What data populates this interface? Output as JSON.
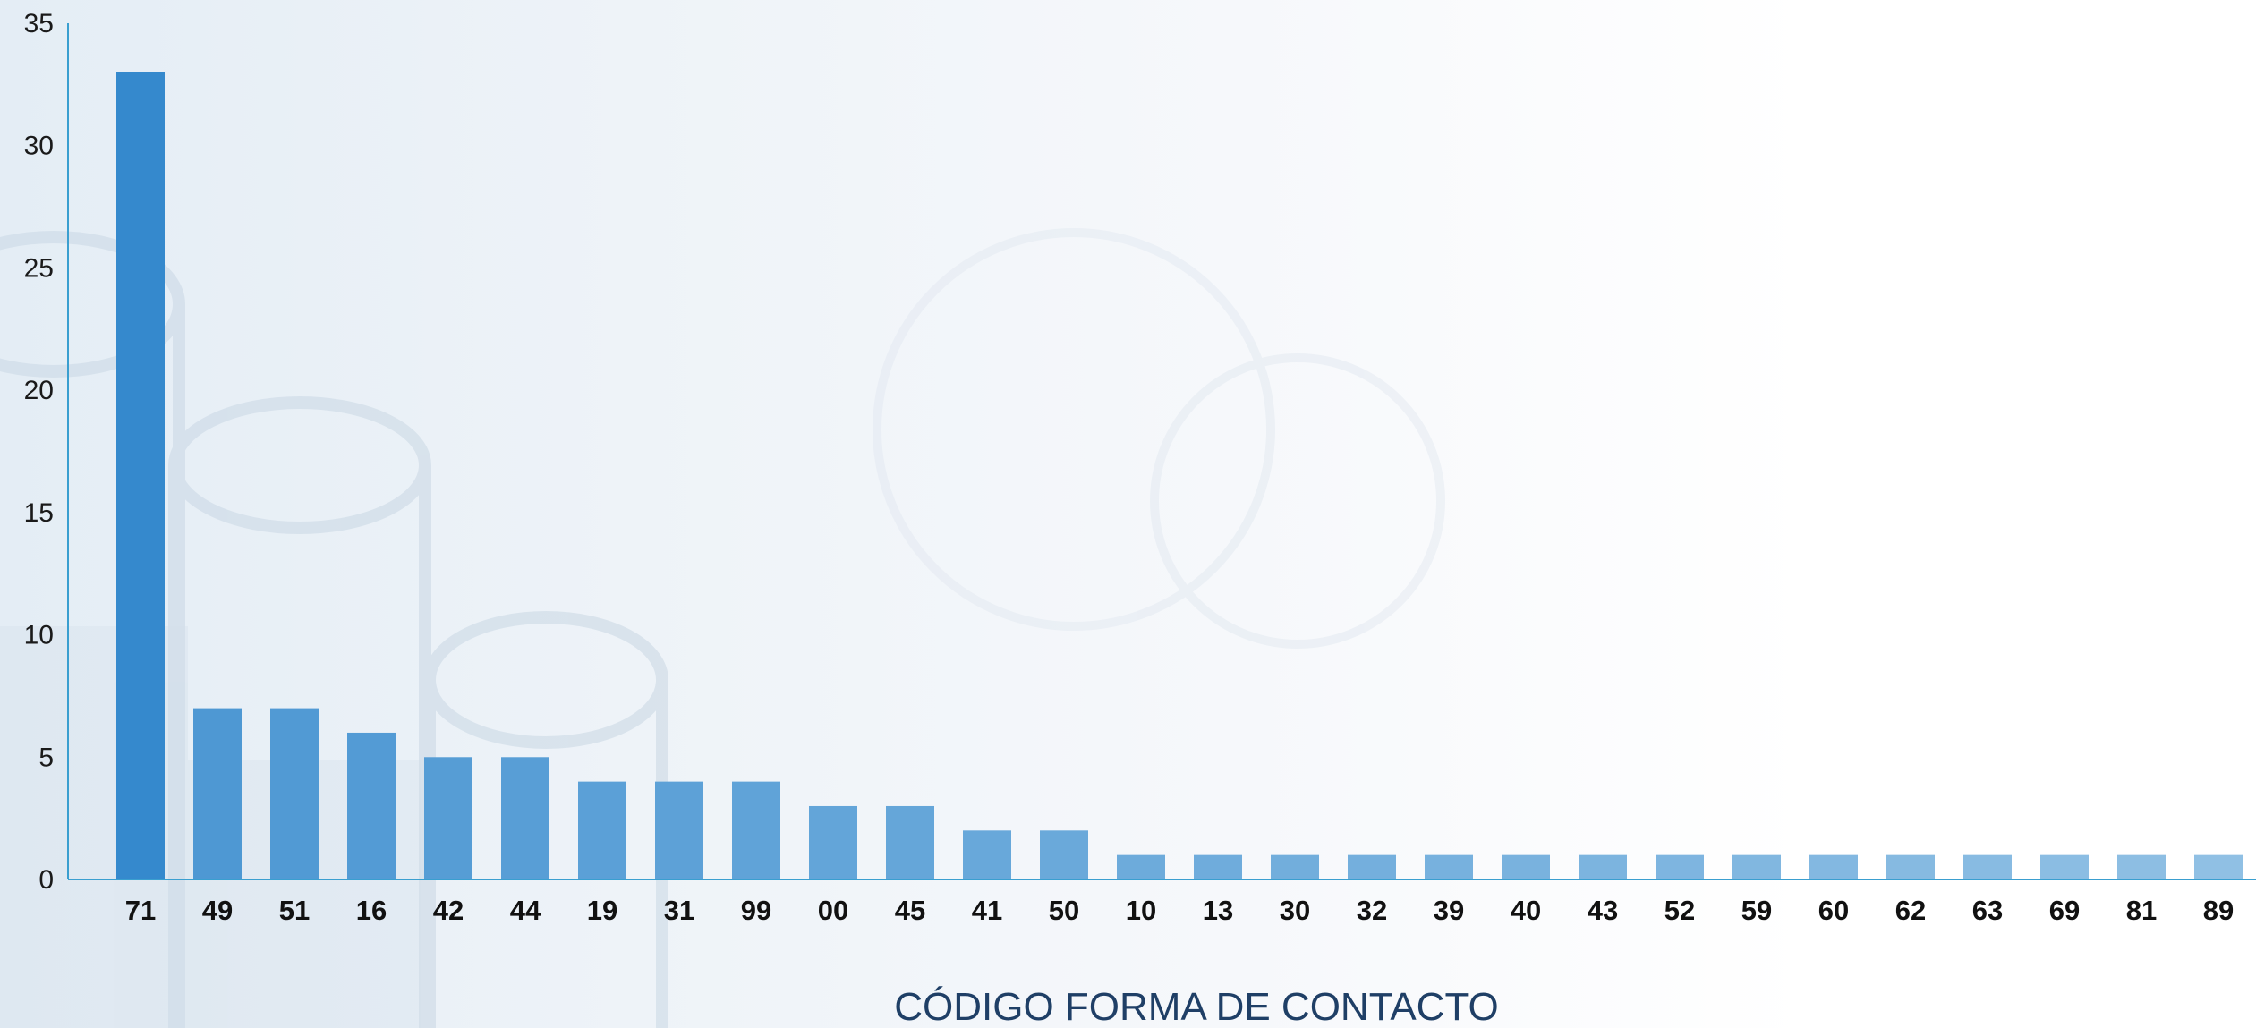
{
  "chart_data": {
    "type": "bar",
    "title": "",
    "xlabel": "CÓDIGO FORMA DE CONTACTO",
    "ylabel": "",
    "ylim": [
      0,
      35
    ],
    "yticks": [
      "0",
      "5",
      "10",
      "15",
      "20",
      "25",
      "30",
      "35"
    ],
    "grid": false,
    "legend": "none",
    "categories": [
      "71",
      "49",
      "51",
      "16",
      "42",
      "44",
      "19",
      "31",
      "99",
      "00",
      "45",
      "41",
      "50",
      "10",
      "13",
      "30",
      "32",
      "39",
      "40",
      "43",
      "52",
      "59",
      "60",
      "62",
      "63",
      "69",
      "81",
      "89"
    ],
    "values": [
      33,
      7,
      7,
      6,
      5,
      5,
      4,
      4,
      4,
      3,
      3,
      2,
      2,
      1,
      1,
      1,
      1,
      1,
      1,
      1,
      1,
      1,
      1,
      1,
      1,
      1,
      1,
      1
    ],
    "colors": {
      "bar_dark": "#3589cd",
      "bar_light": "#90c0e4",
      "axis": "#3a9fd0",
      "xlabel": "#1f3f66"
    }
  }
}
